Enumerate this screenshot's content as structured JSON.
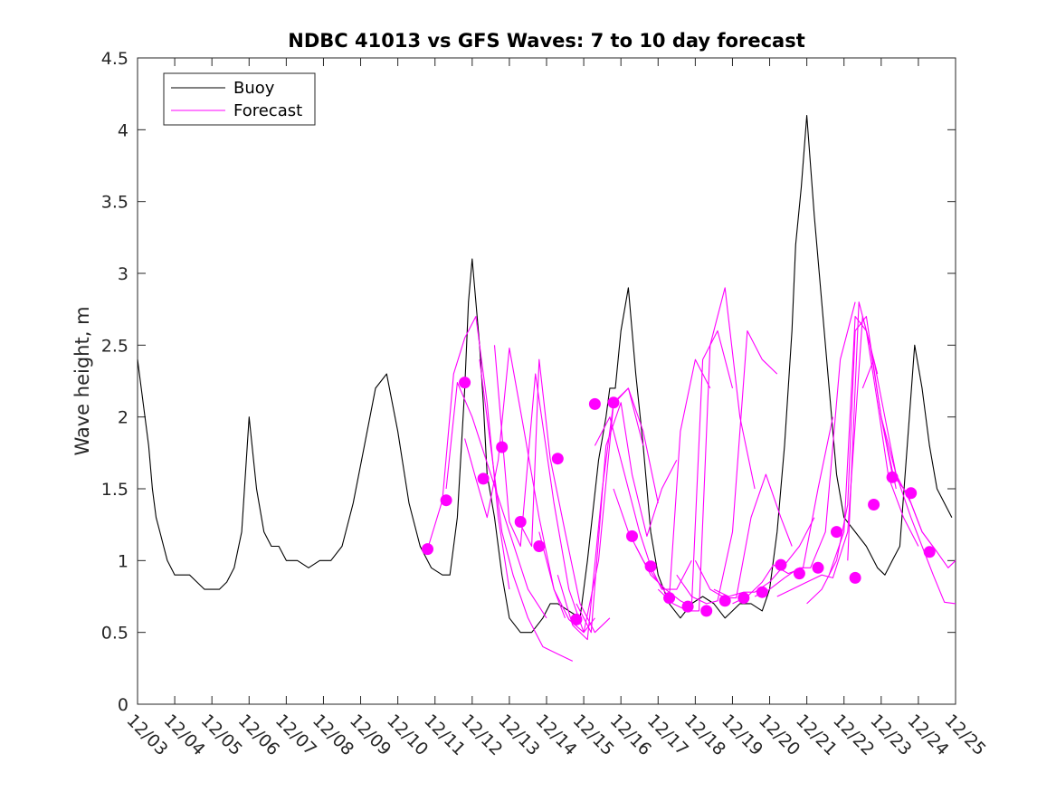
{
  "chart_data": {
    "type": "line",
    "title": "NDBC 41013 vs GFS Waves: 7 to 10 day forecast",
    "xlabel": "",
    "ylabel": "Wave height, m",
    "xlim": [
      0,
      22
    ],
    "ylim": [
      0,
      4.5
    ],
    "yticks": [
      "0",
      "0.5",
      "1",
      "1.5",
      "2",
      "2.5",
      "3",
      "3.5",
      "4",
      "4.5"
    ],
    "xticks": [
      "12/03",
      "12/04",
      "12/05",
      "12/06",
      "12/07",
      "12/08",
      "12/09",
      "12/10",
      "12/11",
      "12/12",
      "12/13",
      "12/14",
      "12/15",
      "12/16",
      "12/17",
      "12/18",
      "12/19",
      "12/20",
      "12/21",
      "12/22",
      "12/23",
      "12/24",
      "12/25"
    ],
    "legend": {
      "position": "top-left",
      "entries": [
        {
          "label": "Buoy",
          "color": "#000000"
        },
        {
          "label": "Forecast",
          "color": "#ff00ff"
        }
      ]
    },
    "colors": {
      "buoy": "#000000",
      "forecast": "#ff00ff",
      "axis": "#262626"
    },
    "series": [
      {
        "name": "Buoy",
        "x": [
          0,
          0.1,
          0.2,
          0.3,
          0.4,
          0.5,
          0.6,
          0.7,
          0.8,
          0.9,
          1,
          1.2,
          1.4,
          1.6,
          1.8,
          2,
          2.2,
          2.4,
          2.6,
          2.8,
          3,
          3.2,
          3.4,
          3.6,
          3.8,
          4,
          4.3,
          4.6,
          4.9,
          5.2,
          5.5,
          5.8,
          6.1,
          6.4,
          6.7,
          7,
          7.3,
          7.6,
          7.9,
          8.2,
          8.4,
          8.6,
          8.8,
          8.9,
          9,
          9.1,
          9.2,
          9.3,
          9.4,
          9.6,
          9.8,
          10,
          10.3,
          10.6,
          10.9,
          11.1,
          11.3,
          11.6,
          11.9,
          12.1,
          12.4,
          12.6,
          12.7,
          12.85,
          13,
          13.2,
          13.4,
          13.6,
          13.8,
          14,
          14.3,
          14.6,
          14.9,
          15.2,
          15.5,
          15.8,
          16,
          16.2,
          16.5,
          16.8,
          17,
          17.2,
          17.4,
          17.6,
          17.7,
          17.85,
          18,
          18.2,
          18.4,
          18.6,
          18.8,
          19,
          19.3,
          19.6,
          19.9,
          20.1,
          20.3,
          20.5,
          20.7,
          20.9,
          21.1,
          21.3,
          21.5,
          21.7,
          21.9
        ],
        "y": [
          2.4,
          2.2,
          2.0,
          1.8,
          1.5,
          1.3,
          1.2,
          1.1,
          1.0,
          0.95,
          0.9,
          0.9,
          0.9,
          0.85,
          0.8,
          0.8,
          0.8,
          0.85,
          0.95,
          1.2,
          2.0,
          1.5,
          1.2,
          1.1,
          1.1,
          1.0,
          1.0,
          0.95,
          1.0,
          1.0,
          1.1,
          1.4,
          1.8,
          2.2,
          2.3,
          1.9,
          1.4,
          1.1,
          0.95,
          0.9,
          0.9,
          1.3,
          2.2,
          2.8,
          3.1,
          2.8,
          2.5,
          2.1,
          1.6,
          1.3,
          0.9,
          0.6,
          0.5,
          0.5,
          0.6,
          0.7,
          0.7,
          0.65,
          0.6,
          1.0,
          1.7,
          2.0,
          2.2,
          2.2,
          2.6,
          2.9,
          2.3,
          1.8,
          1.2,
          0.9,
          0.7,
          0.6,
          0.7,
          0.75,
          0.7,
          0.6,
          0.65,
          0.7,
          0.7,
          0.65,
          0.8,
          1.2,
          1.8,
          2.6,
          3.2,
          3.6,
          4.1,
          3.4,
          2.8,
          2.2,
          1.6,
          1.3,
          1.2,
          1.1,
          0.95,
          0.9,
          1.0,
          1.1,
          1.8,
          2.5,
          2.2,
          1.8,
          1.5,
          1.4,
          1.3
        ]
      },
      {
        "name": "Forecast 1",
        "x": [
          7.8,
          8.2,
          8.5,
          8.8,
          9.1,
          9.4,
          9.7,
          10.0
        ],
        "y": [
          1.08,
          1.42,
          2.3,
          2.55,
          2.7,
          2.1,
          1.3,
          0.8
        ]
      },
      {
        "name": "Forecast 2",
        "x": [
          8.3,
          8.6,
          9.0,
          9.5,
          10.0,
          10.5,
          11.0
        ],
        "y": [
          1.5,
          2.24,
          2.0,
          1.6,
          1.2,
          0.8,
          0.6
        ]
      },
      {
        "name": "Forecast 3",
        "x": [
          8.8,
          9.1,
          9.4,
          9.7,
          10.0,
          10.4,
          10.8,
          11.2,
          11.5
        ],
        "y": [
          1.85,
          1.57,
          1.3,
          1.7,
          2.48,
          1.9,
          1.3,
          0.8,
          0.6
        ]
      },
      {
        "name": "Forecast 4",
        "x": [
          9.2,
          9.5,
          9.8,
          10.1,
          10.5,
          10.9,
          11.3,
          11.7
        ],
        "y": [
          2.4,
          1.79,
          1.2,
          0.9,
          0.6,
          0.4,
          0.35,
          0.3
        ]
      },
      {
        "name": "Forecast 5",
        "x": [
          9.6,
          10.0,
          10.3,
          10.7,
          11.2,
          11.6,
          12.0,
          12.3
        ],
        "y": [
          2.5,
          1.27,
          1.1,
          2.3,
          1.4,
          0.8,
          0.5,
          0.6
        ]
      },
      {
        "name": "Forecast 6",
        "x": [
          10.2,
          10.6,
          10.8,
          11.1,
          11.5,
          11.9,
          12.3,
          12.7
        ],
        "y": [
          1.3,
          1.1,
          2.4,
          1.71,
          1.2,
          0.7,
          0.5,
          0.6
        ]
      },
      {
        "name": "Forecast 7",
        "x": [
          10.8,
          11.2,
          11.6,
          12.0,
          12.4,
          12.8,
          13.2,
          13.6
        ],
        "y": [
          1.2,
          0.8,
          0.59,
          0.5,
          1.0,
          2.09,
          2.2,
          1.8
        ]
      },
      {
        "name": "Forecast 8",
        "x": [
          11.3,
          11.7,
          12.1,
          12.5,
          12.8,
          13.2,
          13.6,
          14.0
        ],
        "y": [
          0.9,
          0.55,
          0.45,
          1.5,
          2.1,
          2.2,
          1.9,
          1.4
        ]
      },
      {
        "name": "Forecast 9",
        "x": [
          11.8,
          12.2,
          12.6,
          13.0,
          13.3,
          13.7,
          14.1,
          14.5
        ],
        "y": [
          0.7,
          0.5,
          1.8,
          2.1,
          1.6,
          1.17,
          1.5,
          1.7
        ]
      },
      {
        "name": "Forecast 10",
        "x": [
          12.3,
          12.7,
          13.1,
          13.5,
          13.8,
          14.1,
          14.5,
          14.9
        ],
        "y": [
          1.8,
          2.0,
          1.6,
          1.2,
          0.96,
          0.8,
          0.8,
          1.0
        ]
      },
      {
        "name": "Forecast 11",
        "x": [
          12.8,
          13.2,
          13.6,
          14.0,
          14.3,
          14.6,
          15.0,
          15.4
        ],
        "y": [
          1.5,
          1.2,
          1.0,
          0.85,
          0.74,
          1.9,
          2.4,
          2.2
        ]
      },
      {
        "name": "Forecast 12",
        "x": [
          13.4,
          13.8,
          14.2,
          14.6,
          14.9,
          15.2,
          15.6,
          16.0
        ],
        "y": [
          1.1,
          0.9,
          0.8,
          0.72,
          0.68,
          2.4,
          2.6,
          2.2
        ]
      },
      {
        "name": "Forecast 13",
        "x": [
          14.0,
          14.4,
          14.8,
          15.1,
          15.4,
          15.8,
          16.2,
          16.6
        ],
        "y": [
          0.8,
          0.7,
          0.65,
          0.65,
          2.5,
          2.9,
          2.0,
          1.5
        ]
      },
      {
        "name": "Forecast 14",
        "x": [
          14.5,
          14.9,
          15.3,
          15.6,
          16.0,
          16.4,
          16.8,
          17.2
        ],
        "y": [
          0.9,
          0.75,
          0.7,
          0.72,
          1.2,
          2.6,
          2.4,
          2.3
        ]
      },
      {
        "name": "Forecast 15",
        "x": [
          15.0,
          15.4,
          15.8,
          16.1,
          16.5,
          16.9,
          17.3,
          17.6
        ],
        "y": [
          1.0,
          0.8,
          0.74,
          0.74,
          1.3,
          1.6,
          1.3,
          1.1
        ]
      },
      {
        "name": "Forecast 16",
        "x": [
          15.5,
          15.9,
          16.3,
          16.6,
          17.0,
          17.4,
          17.8,
          18.2
        ],
        "y": [
          0.8,
          0.75,
          0.78,
          0.78,
          0.85,
          0.97,
          1.1,
          1.3
        ]
      },
      {
        "name": "Forecast 17",
        "x": [
          16.0,
          16.4,
          16.8,
          17.1,
          17.5,
          17.9,
          18.3,
          18.7
        ],
        "y": [
          0.7,
          0.75,
          0.85,
          0.97,
          0.91,
          0.95,
          1.5,
          2.0
        ]
      },
      {
        "name": "Forecast 18",
        "x": [
          16.6,
          17.0,
          17.4,
          17.8,
          18.1,
          18.5,
          18.9,
          19.3
        ],
        "y": [
          0.75,
          0.8,
          0.88,
          0.95,
          0.95,
          1.2,
          2.4,
          2.8
        ]
      },
      {
        "name": "Forecast 19",
        "x": [
          17.2,
          17.6,
          18.0,
          18.4,
          18.7,
          19.1,
          19.5,
          19.9
        ],
        "y": [
          0.75,
          0.8,
          0.85,
          0.9,
          0.88,
          1.2,
          2.7,
          2.3
        ]
      },
      {
        "name": "Forecast 20",
        "x": [
          18.0,
          18.4,
          18.8,
          19.1,
          19.3,
          19.6,
          20.0,
          20.4
        ],
        "y": [
          0.7,
          0.8,
          1.0,
          1.39,
          2.6,
          2.7,
          2.0,
          1.5
        ]
      },
      {
        "name": "Forecast 21",
        "x": [
          18.6,
          19.0,
          19.3,
          19.6,
          19.9,
          20.2,
          20.6,
          21.0
        ],
        "y": [
          0.9,
          1.2,
          2.7,
          2.6,
          2.1,
          1.58,
          1.3,
          1.1
        ]
      },
      {
        "name": "Forecast 22",
        "x": [
          19.1,
          19.4,
          19.7,
          20.0,
          20.3,
          20.7,
          21.1,
          21.5
        ],
        "y": [
          1.0,
          2.8,
          2.5,
          2.0,
          1.6,
          1.47,
          1.2,
          1.06
        ]
      },
      {
        "name": "Forecast 23",
        "x": [
          19.5,
          19.8,
          20.1,
          20.4,
          20.8,
          21.1,
          21.5,
          21.8,
          22.0
        ],
        "y": [
          2.2,
          2.4,
          2.0,
          1.6,
          1.4,
          1.2,
          1.06,
          0.95,
          1.0
        ]
      },
      {
        "name": "Forecast 24",
        "x": [
          20.0,
          20.4,
          20.8,
          21.1,
          21.4,
          21.7,
          22.0
        ],
        "y": [
          2.0,
          1.6,
          1.3,
          1.1,
          0.9,
          0.71,
          0.7
        ]
      }
    ],
    "forecast_markers": {
      "x": [
        7.8,
        8.3,
        8.8,
        9.3,
        9.8,
        10.3,
        10.8,
        11.3,
        11.8,
        12.3,
        12.8,
        13.3,
        13.8,
        14.3,
        14.8,
        15.3,
        15.8,
        16.3,
        16.8,
        17.3,
        17.8,
        18.3,
        18.8,
        19.3,
        19.8,
        20.3,
        20.8,
        21.3
      ],
      "y": [
        1.08,
        1.42,
        2.24,
        1.57,
        1.79,
        1.27,
        1.1,
        1.71,
        0.59,
        2.09,
        2.1,
        1.17,
        0.96,
        0.74,
        0.68,
        0.65,
        0.72,
        0.74,
        0.78,
        0.97,
        0.91,
        0.95,
        1.2,
        0.88,
        1.39,
        1.58,
        1.47,
        1.06
      ]
    }
  }
}
